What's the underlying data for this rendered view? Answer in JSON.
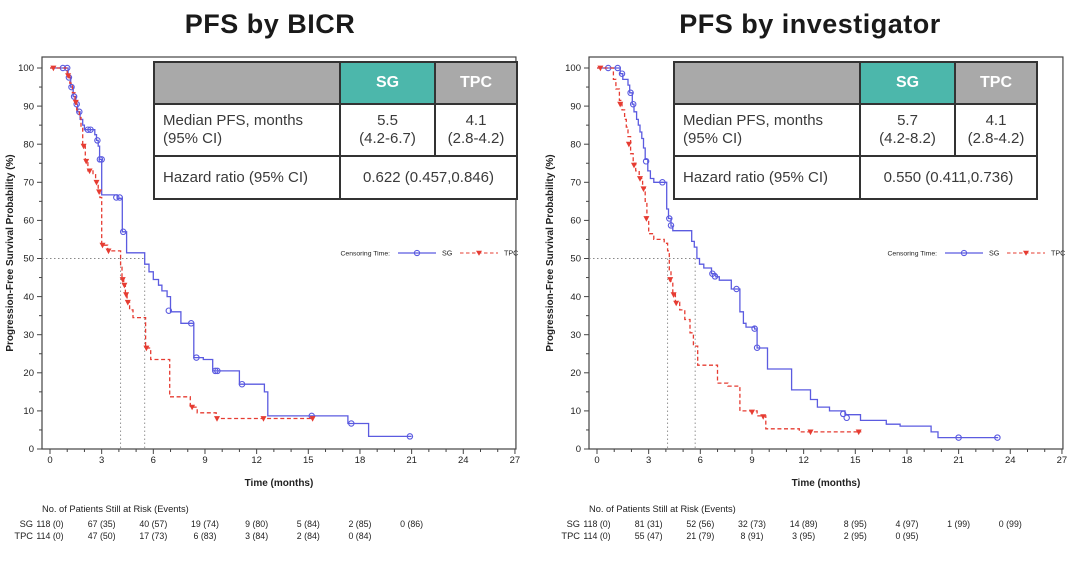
{
  "colors": {
    "sg_blue": "#5b5be0",
    "tpc_red": "#e63c32",
    "teal_header": "#4cb7ab",
    "gray_header": "#a9a9a9",
    "table_border": "#333333",
    "axis": "#444444",
    "tick_text": "#222222",
    "ref_line": "#888888",
    "title_text": "#1a1a1a"
  },
  "legend": {
    "label": "Censoring Time:",
    "sg_label": "SG",
    "tpc_label": "TPC"
  },
  "axes": {
    "y_label": "Progression-Free Survival Probability (%)",
    "x_label": "Time (months)",
    "x_ticks": [
      0,
      3,
      6,
      9,
      12,
      15,
      18,
      21,
      24,
      27
    ],
    "y_ticks": [
      0,
      10,
      20,
      30,
      40,
      50,
      60,
      70,
      80,
      90,
      100
    ]
  },
  "risk_header": "No. of Patients Still at Risk (Events)",
  "chart_data": [
    {
      "type": "line",
      "title": "PFS by BICR",
      "xlabel": "Time (months)",
      "ylabel": "Progression-Free Survival Probability (%)",
      "xlim": [
        0,
        27
      ],
      "ylim": [
        0,
        100
      ],
      "grid": false,
      "legend_position": "inside-right",
      "stats": {
        "col_sg": "SG",
        "col_tpc": "TPC",
        "median_label_1": "Median PFS, months",
        "median_label_2": "(95% CI)",
        "median_sg_1": "5.5",
        "median_sg_2": "(4.2-6.7)",
        "median_tpc_1": "4.1",
        "median_tpc_2": "(2.8-4.2)",
        "hr_label": "Hazard ratio (95% CI)",
        "hr_value": "0.622 (0.457,0.846)"
      },
      "medians": {
        "sg": 5.5,
        "tpc": 4.1
      },
      "series": [
        {
          "name": "SG",
          "style": "solid",
          "marker": "open-circle",
          "steps": [
            [
              0,
              100
            ],
            [
              1.05,
              97.5
            ],
            [
              1.2,
              95
            ],
            [
              1.35,
              92.5
            ],
            [
              1.5,
              90.5
            ],
            [
              1.6,
              88.5
            ],
            [
              1.75,
              86.5
            ],
            [
              1.9,
              85
            ],
            [
              2.0,
              83.8
            ],
            [
              2.6,
              82.5
            ],
            [
              2.7,
              81
            ],
            [
              2.8,
              79.5
            ],
            [
              2.88,
              76
            ],
            [
              3.0,
              66.7
            ],
            [
              3.9,
              65.8
            ],
            [
              4.2,
              57
            ],
            [
              4.45,
              51.5
            ],
            [
              5.5,
              48.5
            ],
            [
              5.75,
              46.5
            ],
            [
              6.0,
              44.5
            ],
            [
              6.3,
              43
            ],
            [
              6.5,
              41.5
            ],
            [
              6.8,
              40
            ],
            [
              7.0,
              36
            ],
            [
              7.6,
              33
            ],
            [
              8.35,
              24
            ],
            [
              8.9,
              23.5
            ],
            [
              9.45,
              20.5
            ],
            [
              11.0,
              17
            ],
            [
              12.45,
              15
            ],
            [
              12.65,
              8.7
            ],
            [
              17.3,
              6.7
            ],
            [
              18.5,
              3.3
            ],
            [
              21.0,
              3.3
            ]
          ],
          "censors": [
            [
              0.75,
              100
            ],
            [
              1.0,
              100
            ],
            [
              1.1,
              97.5
            ],
            [
              1.25,
              95
            ],
            [
              1.4,
              92.5
            ],
            [
              1.55,
              90.5
            ],
            [
              1.7,
              88.5
            ],
            [
              2.2,
              83.8
            ],
            [
              2.35,
              83.8
            ],
            [
              2.75,
              81
            ],
            [
              2.9,
              76
            ],
            [
              3.0,
              76
            ],
            [
              3.85,
              66
            ],
            [
              4.05,
              66
            ],
            [
              4.25,
              57
            ],
            [
              6.9,
              36.3
            ],
            [
              8.2,
              33
            ],
            [
              8.5,
              24
            ],
            [
              9.6,
              20.5
            ],
            [
              9.72,
              20.5
            ],
            [
              11.15,
              17
            ],
            [
              15.2,
              8.7
            ],
            [
              17.5,
              6.7
            ],
            [
              20.9,
              3.3
            ]
          ]
        },
        {
          "name": "TPC",
          "style": "dashed",
          "marker": "filled-triangle-down",
          "steps": [
            [
              0,
              100
            ],
            [
              1.0,
              98
            ],
            [
              1.15,
              96
            ],
            [
              1.3,
              93.5
            ],
            [
              1.45,
              91
            ],
            [
              1.55,
              89
            ],
            [
              1.7,
              87
            ],
            [
              1.8,
              84.5
            ],
            [
              1.9,
              79.5
            ],
            [
              2.05,
              75.5
            ],
            [
              2.2,
              73
            ],
            [
              2.5,
              72
            ],
            [
              2.65,
              70
            ],
            [
              2.8,
              67.5
            ],
            [
              2.9,
              66
            ],
            [
              3.0,
              53.5
            ],
            [
              3.35,
              52
            ],
            [
              4.1,
              48
            ],
            [
              4.18,
              44.5
            ],
            [
              4.28,
              43
            ],
            [
              4.38,
              40.5
            ],
            [
              4.48,
              38.5
            ],
            [
              4.62,
              36.5
            ],
            [
              4.82,
              34.5
            ],
            [
              5.55,
              26.5
            ],
            [
              5.85,
              23.5
            ],
            [
              6.95,
              13.7
            ],
            [
              8.15,
              11
            ],
            [
              8.55,
              9.5
            ],
            [
              9.65,
              8
            ],
            [
              15.3,
              8
            ]
          ],
          "censors": [
            [
              0.2,
              100
            ],
            [
              1.05,
              98
            ],
            [
              1.5,
              91
            ],
            [
              1.95,
              79.5
            ],
            [
              2.1,
              75.5
            ],
            [
              2.3,
              73
            ],
            [
              2.7,
              70
            ],
            [
              2.85,
              67.5
            ],
            [
              3.05,
              53.5
            ],
            [
              3.4,
              52
            ],
            [
              4.22,
              44.5
            ],
            [
              4.32,
              43
            ],
            [
              4.42,
              40.5
            ],
            [
              4.52,
              38.5
            ],
            [
              5.6,
              26.5
            ],
            [
              8.25,
              11
            ],
            [
              9.7,
              8
            ],
            [
              12.4,
              8
            ],
            [
              15.25,
              8
            ]
          ]
        }
      ],
      "risk_table": {
        "times": [
          0,
          3,
          6,
          9,
          12,
          15,
          18,
          21
        ],
        "rows": [
          {
            "label": "SG",
            "values": [
              "118 (0)",
              "67 (35)",
              "40 (57)",
              "19 (74)",
              "9 (80)",
              "5 (84)",
              "2 (85)",
              "0 (86)"
            ]
          },
          {
            "label": "TPC",
            "values": [
              "114 (0)",
              "47 (50)",
              "17 (73)",
              "6 (83)",
              "3 (84)",
              "2 (84)",
              "0 (84)"
            ]
          }
        ]
      }
    },
    {
      "type": "line",
      "title": "PFS by investigator",
      "xlabel": "Time (months)",
      "ylabel": "Progression-Free Survival Probability (%)",
      "xlim": [
        0,
        27
      ],
      "ylim": [
        0,
        100
      ],
      "grid": false,
      "legend_position": "inside-right",
      "stats": {
        "col_sg": "SG",
        "col_tpc": "TPC",
        "median_label_1": "Median PFS, months",
        "median_label_2": "(95% CI)",
        "median_sg_1": "5.7",
        "median_sg_2": "(4.2-8.2)",
        "median_tpc_1": "4.1",
        "median_tpc_2": "(2.8-4.2)",
        "hr_label": "Hazard ratio (95% CI)",
        "hr_value": "0.550 (0.411,0.736)"
      },
      "medians": {
        "sg": 5.7,
        "tpc": 4.1
      },
      "series": [
        {
          "name": "SG",
          "style": "solid",
          "marker": "open-circle",
          "steps": [
            [
              0,
              100
            ],
            [
              1.35,
              98.5
            ],
            [
              1.5,
              97
            ],
            [
              1.8,
              95.5
            ],
            [
              1.9,
              93.5
            ],
            [
              2.05,
              90.5
            ],
            [
              2.15,
              88.5
            ],
            [
              2.3,
              86.5
            ],
            [
              2.4,
              85
            ],
            [
              2.5,
              83.2
            ],
            [
              2.6,
              81.5
            ],
            [
              2.7,
              79
            ],
            [
              2.8,
              76
            ],
            [
              2.95,
              73
            ],
            [
              3.1,
              71
            ],
            [
              3.3,
              70
            ],
            [
              4.05,
              63
            ],
            [
              4.15,
              60.5
            ],
            [
              4.3,
              58.5
            ],
            [
              4.4,
              57.3
            ],
            [
              5.5,
              54.5
            ],
            [
              5.65,
              53
            ],
            [
              5.8,
              50
            ],
            [
              5.95,
              48.5
            ],
            [
              6.2,
              47.5
            ],
            [
              6.65,
              46
            ],
            [
              6.9,
              45.2
            ],
            [
              7.1,
              44.3
            ],
            [
              7.8,
              42
            ],
            [
              8.3,
              36
            ],
            [
              8.5,
              33
            ],
            [
              8.65,
              32
            ],
            [
              9.15,
              31.5
            ],
            [
              9.3,
              26.5
            ],
            [
              9.9,
              21
            ],
            [
              11.3,
              15.5
            ],
            [
              12.4,
              13
            ],
            [
              12.8,
              11
            ],
            [
              13.5,
              10
            ],
            [
              14.4,
              9
            ],
            [
              15.3,
              7.5
            ],
            [
              16.8,
              6.5
            ],
            [
              17.6,
              6
            ],
            [
              19.4,
              4.5
            ],
            [
              19.8,
              3
            ],
            [
              23.3,
              3
            ]
          ],
          "censors": [
            [
              0.65,
              100
            ],
            [
              1.2,
              100
            ],
            [
              1.45,
              98.5
            ],
            [
              1.95,
              93.5
            ],
            [
              2.1,
              90.5
            ],
            [
              2.85,
              75.5
            ],
            [
              3.8,
              70
            ],
            [
              4.2,
              60.5
            ],
            [
              4.3,
              58.7
            ],
            [
              6.7,
              46
            ],
            [
              6.85,
              45.3
            ],
            [
              8.1,
              42
            ],
            [
              9.15,
              31.6
            ],
            [
              9.3,
              26.6
            ],
            [
              14.3,
              9.2
            ],
            [
              14.5,
              8.2
            ],
            [
              21.0,
              3
            ],
            [
              23.25,
              3
            ]
          ]
        },
        {
          "name": "TPC",
          "style": "dashed",
          "marker": "filled-triangle-down",
          "steps": [
            [
              0,
              100
            ],
            [
              0.95,
              97
            ],
            [
              1.1,
              94.5
            ],
            [
              1.3,
              91.5
            ],
            [
              1.45,
              89
            ],
            [
              1.6,
              86.5
            ],
            [
              1.7,
              84.5
            ],
            [
              1.8,
              82
            ],
            [
              1.95,
              77.5
            ],
            [
              2.1,
              75
            ],
            [
              2.25,
              73
            ],
            [
              2.45,
              71
            ],
            [
              2.65,
              68.5
            ],
            [
              2.8,
              65
            ],
            [
              2.9,
              60
            ],
            [
              3.0,
              56.5
            ],
            [
              3.3,
              55
            ],
            [
              3.9,
              54
            ],
            [
              4.1,
              52
            ],
            [
              4.2,
              47
            ],
            [
              4.3,
              44
            ],
            [
              4.4,
              41
            ],
            [
              4.55,
              38.5
            ],
            [
              4.8,
              36.5
            ],
            [
              5.1,
              34
            ],
            [
              5.4,
              30.5
            ],
            [
              5.6,
              27
            ],
            [
              5.85,
              22
            ],
            [
              7.0,
              17.3
            ],
            [
              7.6,
              16.5
            ],
            [
              8.3,
              10
            ],
            [
              9.3,
              8.7
            ],
            [
              9.8,
              5.3
            ],
            [
              11.75,
              4.5
            ],
            [
              15.35,
              4.5
            ]
          ],
          "censors": [
            [
              0.2,
              100
            ],
            [
              1.35,
              90.5
            ],
            [
              1.85,
              80
            ],
            [
              2.15,
              74.5
            ],
            [
              2.5,
              71
            ],
            [
              2.7,
              68.3
            ],
            [
              2.87,
              60.5
            ],
            [
              4.25,
              44.5
            ],
            [
              4.45,
              40.5
            ],
            [
              4.6,
              38.3
            ],
            [
              9.0,
              9.7
            ],
            [
              9.65,
              8.5
            ],
            [
              12.4,
              4.5
            ],
            [
              15.2,
              4.5
            ]
          ]
        }
      ],
      "risk_table": {
        "times": [
          0,
          3,
          6,
          9,
          12,
          15,
          18,
          21,
          24
        ],
        "rows": [
          {
            "label": "SG",
            "values": [
              "118 (0)",
              "81 (31)",
              "52 (56)",
              "32 (73)",
              "14 (89)",
              "8 (95)",
              "4 (97)",
              "1 (99)",
              "0 (99)"
            ]
          },
          {
            "label": "TPC",
            "values": [
              "114 (0)",
              "55 (47)",
              "21 (79)",
              "8 (91)",
              "3 (95)",
              "2 (95)",
              "0 (95)"
            ]
          }
        ]
      }
    }
  ]
}
